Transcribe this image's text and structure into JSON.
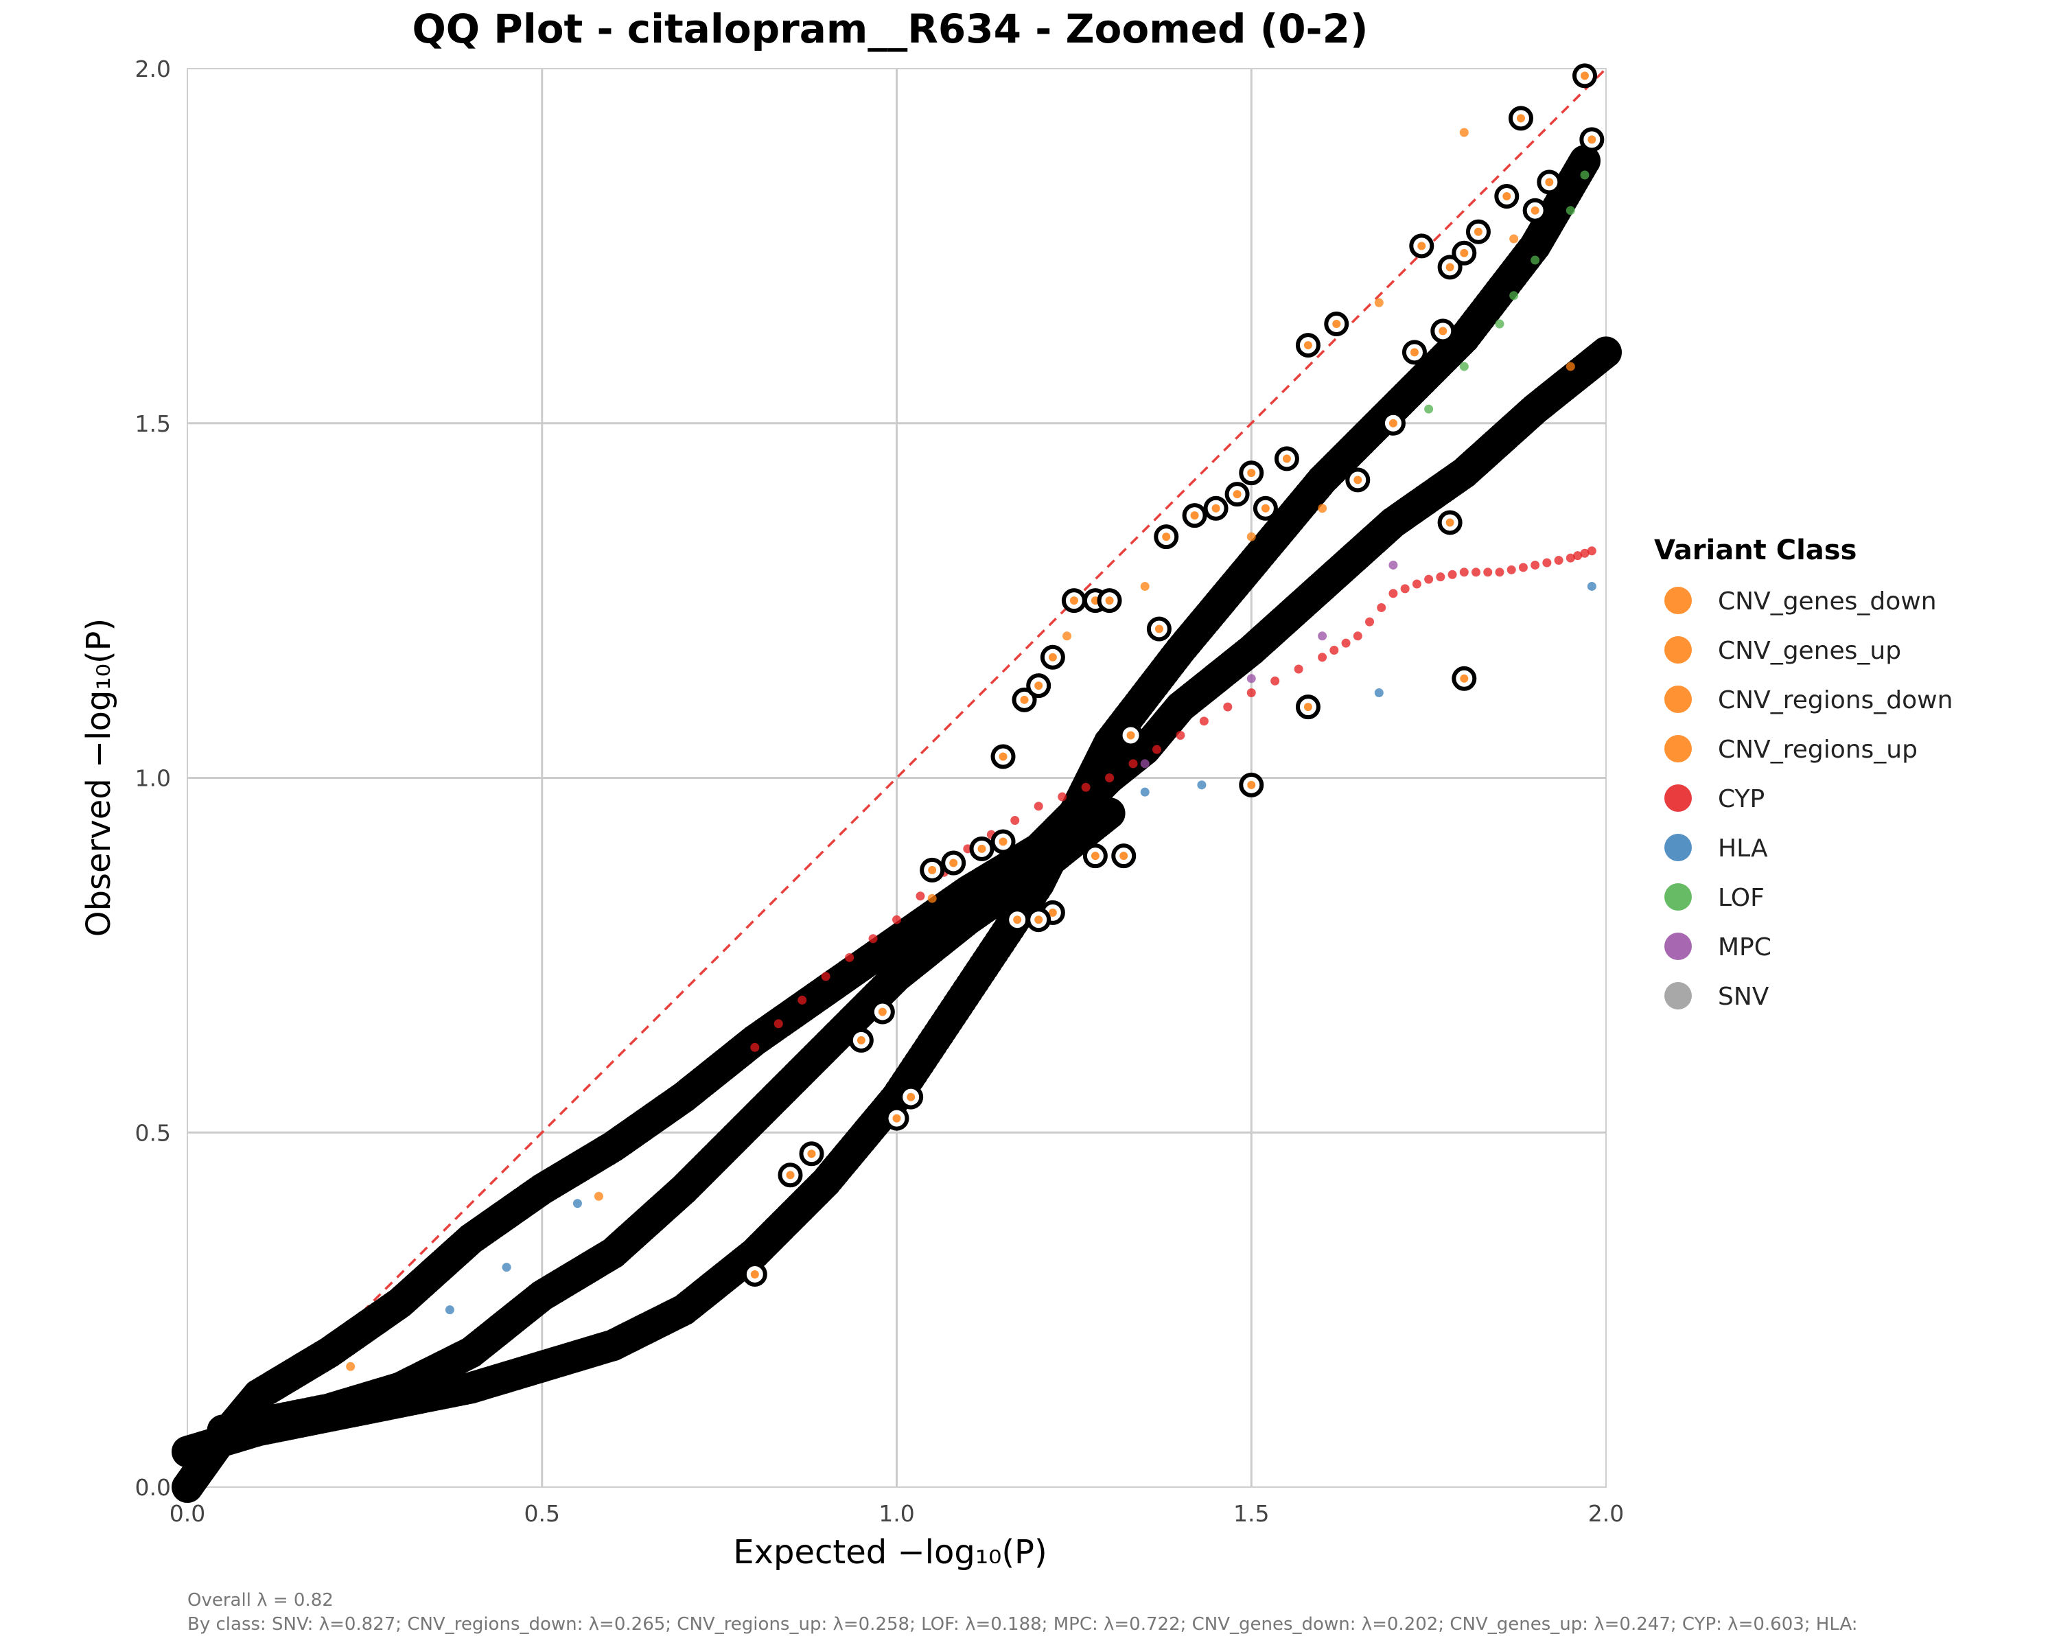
{
  "chart_data": {
    "type": "scatter",
    "title": "QQ Plot - citalopram__R634 - Zoomed (0-2)",
    "xlabel": "Expected −log₁₀(P)",
    "ylabel": "Observed −log₁₀(P)",
    "xlim": [
      0,
      2
    ],
    "ylim": [
      0,
      2
    ],
    "xticks": [
      "0.0",
      "0.5",
      "1.0",
      "1.5",
      "2.0"
    ],
    "yticks": [
      "0.0",
      "0.5",
      "1.0",
      "1.5",
      "2.0"
    ],
    "grid": true,
    "reference_line": "y = x (dashed red)",
    "legend": {
      "title": "Variant Class",
      "placement": "right",
      "entries": [
        {
          "label": "CNV_genes_down",
          "color": "#ff7f0e"
        },
        {
          "label": "CNV_genes_up",
          "color": "#ff7f0e"
        },
        {
          "label": "CNV_regions_down",
          "color": "#ff7f0e"
        },
        {
          "label": "CNV_regions_up",
          "color": "#ff7f0e"
        },
        {
          "label": "CYP",
          "color": "#e41a1c"
        },
        {
          "label": "HLA",
          "color": "#377eb8"
        },
        {
          "label": "LOF",
          "color": "#4daf4a"
        },
        {
          "label": "MPC",
          "color": "#984ea3"
        },
        {
          "label": "SNV",
          "color": "#999999"
        }
      ]
    },
    "series": [
      {
        "name": "SNV",
        "color": "#000000",
        "style": "dense",
        "points": [
          [
            0.0,
            0.0
          ],
          [
            0.05,
            0.07
          ],
          [
            0.1,
            0.13
          ],
          [
            0.2,
            0.19
          ],
          [
            0.3,
            0.26
          ],
          [
            0.4,
            0.35
          ],
          [
            0.5,
            0.42
          ],
          [
            0.6,
            0.48
          ],
          [
            0.7,
            0.55
          ],
          [
            0.8,
            0.63
          ],
          [
            0.9,
            0.7
          ],
          [
            1.0,
            0.77
          ],
          [
            1.1,
            0.84
          ],
          [
            1.2,
            0.9
          ],
          [
            1.25,
            0.95
          ],
          [
            1.3,
            1.0
          ],
          [
            1.35,
            1.04
          ],
          [
            1.4,
            1.1
          ],
          [
            1.5,
            1.18
          ],
          [
            1.6,
            1.27
          ],
          [
            1.7,
            1.36
          ],
          [
            1.8,
            1.43
          ],
          [
            1.9,
            1.52
          ],
          [
            2.0,
            1.6
          ]
        ]
      },
      {
        "name": "CNV_regions_down",
        "color": "#000000",
        "style": "dense",
        "points": [
          [
            0.0,
            0.05
          ],
          [
            0.1,
            0.08
          ],
          [
            0.2,
            0.1
          ],
          [
            0.3,
            0.12
          ],
          [
            0.4,
            0.14
          ],
          [
            0.5,
            0.17
          ],
          [
            0.6,
            0.2
          ],
          [
            0.7,
            0.25
          ],
          [
            0.8,
            0.33
          ],
          [
            0.9,
            0.43
          ],
          [
            1.0,
            0.55
          ],
          [
            1.1,
            0.7
          ],
          [
            1.2,
            0.85
          ],
          [
            1.25,
            0.95
          ],
          [
            1.3,
            1.05
          ],
          [
            1.4,
            1.18
          ],
          [
            1.5,
            1.3
          ],
          [
            1.6,
            1.42
          ],
          [
            1.7,
            1.52
          ],
          [
            1.8,
            1.62
          ],
          [
            1.9,
            1.75
          ],
          [
            1.97,
            1.87
          ]
        ]
      },
      {
        "name": "CNV_regions_up",
        "color": "#000000",
        "style": "dense",
        "points": [
          [
            0.05,
            0.08
          ],
          [
            0.2,
            0.11
          ],
          [
            0.3,
            0.14
          ],
          [
            0.4,
            0.19
          ],
          [
            0.5,
            0.27
          ],
          [
            0.6,
            0.33
          ],
          [
            0.7,
            0.42
          ],
          [
            0.8,
            0.52
          ],
          [
            0.9,
            0.62
          ],
          [
            1.0,
            0.72
          ],
          [
            1.1,
            0.8
          ],
          [
            1.2,
            0.87
          ],
          [
            1.3,
            0.95
          ]
        ]
      },
      {
        "name": "CYP",
        "color": "#e41a1c",
        "style": "small",
        "points": [
          [
            0.8,
            0.62
          ],
          [
            0.9,
            0.72
          ],
          [
            1.0,
            0.8
          ],
          [
            1.1,
            0.9
          ],
          [
            1.2,
            0.96
          ],
          [
            1.3,
            1.0
          ],
          [
            1.4,
            1.06
          ],
          [
            1.5,
            1.12
          ],
          [
            1.6,
            1.17
          ],
          [
            1.65,
            1.2
          ],
          [
            1.7,
            1.26
          ],
          [
            1.75,
            1.28
          ],
          [
            1.8,
            1.29
          ],
          [
            1.85,
            1.29
          ],
          [
            1.9,
            1.3
          ],
          [
            1.95,
            1.31
          ],
          [
            1.98,
            1.32
          ]
        ]
      },
      {
        "name": "HLA",
        "color": "#377eb8",
        "style": "small",
        "points": [
          [
            0.37,
            0.25
          ],
          [
            0.45,
            0.31
          ],
          [
            0.55,
            0.4
          ],
          [
            1.35,
            0.98
          ],
          [
            1.43,
            0.99
          ],
          [
            1.5,
            0.99
          ],
          [
            1.58,
            1.1
          ],
          [
            1.68,
            1.12
          ],
          [
            1.8,
            1.14
          ],
          [
            1.98,
            1.27
          ]
        ]
      },
      {
        "name": "LOF",
        "color": "#4daf4a",
        "style": "small",
        "points": [
          [
            1.75,
            1.52
          ],
          [
            1.8,
            1.58
          ],
          [
            1.85,
            1.64
          ],
          [
            1.87,
            1.68
          ],
          [
            1.9,
            1.73
          ],
          [
            1.95,
            1.8
          ],
          [
            1.97,
            1.85
          ]
        ]
      },
      {
        "name": "MPC",
        "color": "#984ea3",
        "style": "small",
        "points": [
          [
            1.35,
            1.02
          ],
          [
            1.5,
            1.14
          ],
          [
            1.6,
            1.2
          ],
          [
            1.7,
            1.3
          ]
        ]
      },
      {
        "name": "CNV_genes_up",
        "color": "#ff7f0e",
        "style": "small",
        "points": [
          [
            0.23,
            0.17
          ],
          [
            0.58,
            0.41
          ],
          [
            1.05,
            0.83
          ],
          [
            1.24,
            1.2
          ],
          [
            1.35,
            1.27
          ],
          [
            1.5,
            1.34
          ],
          [
            1.6,
            1.38
          ],
          [
            1.68,
            1.67
          ],
          [
            1.8,
            1.91
          ],
          [
            1.87,
            1.76
          ],
          [
            1.95,
            1.58
          ]
        ]
      }
    ],
    "outliers": [
      [
        1.15,
        1.03
      ],
      [
        1.18,
        1.11
      ],
      [
        1.2,
        1.13
      ],
      [
        1.22,
        1.17
      ],
      [
        1.25,
        1.25
      ],
      [
        1.28,
        1.25
      ],
      [
        1.3,
        1.25
      ],
      [
        1.33,
        1.06
      ],
      [
        1.37,
        1.21
      ],
      [
        1.38,
        1.34
      ],
      [
        1.42,
        1.37
      ],
      [
        1.45,
        1.38
      ],
      [
        1.48,
        1.4
      ],
      [
        1.5,
        1.43
      ],
      [
        1.52,
        1.38
      ],
      [
        1.55,
        1.45
      ],
      [
        1.58,
        1.61
      ],
      [
        1.62,
        1.64
      ],
      [
        1.65,
        1.42
      ],
      [
        1.7,
        1.5
      ],
      [
        1.73,
        1.6
      ],
      [
        1.74,
        1.75
      ],
      [
        1.77,
        1.63
      ],
      [
        1.78,
        1.72
      ],
      [
        1.8,
        1.74
      ],
      [
        1.82,
        1.77
      ],
      [
        1.86,
        1.82
      ],
      [
        1.88,
        1.93
      ],
      [
        1.9,
        1.8
      ],
      [
        1.92,
        1.84
      ],
      [
        1.97,
        1.99
      ],
      [
        1.98,
        1.9
      ],
      [
        1.78,
        1.36
      ],
      [
        1.8,
        1.14
      ],
      [
        1.58,
        1.1
      ],
      [
        1.5,
        0.99
      ],
      [
        1.32,
        0.89
      ],
      [
        1.22,
        0.81
      ],
      [
        1.28,
        0.89
      ],
      [
        1.05,
        0.87
      ],
      [
        1.08,
        0.88
      ],
      [
        1.12,
        0.9
      ],
      [
        1.15,
        0.91
      ],
      [
        0.98,
        0.67
      ],
      [
        0.95,
        0.63
      ],
      [
        1.0,
        0.52
      ],
      [
        1.02,
        0.55
      ],
      [
        0.8,
        0.3
      ],
      [
        0.88,
        0.47
      ],
      [
        0.85,
        0.44
      ],
      [
        1.17,
        0.8
      ],
      [
        1.2,
        0.8
      ]
    ],
    "footer": {
      "overall": "Overall λ = 0.82",
      "by_class": "By class: SNV: λ=0.827; CNV_regions_down: λ=0.265; CNV_regions_up: λ=0.258; LOF: λ=0.188; MPC: λ=0.722; CNV_genes_down: λ=0.202; CNV_genes_up: λ=0.247; CYP: λ=0.603; HLA:"
    }
  }
}
